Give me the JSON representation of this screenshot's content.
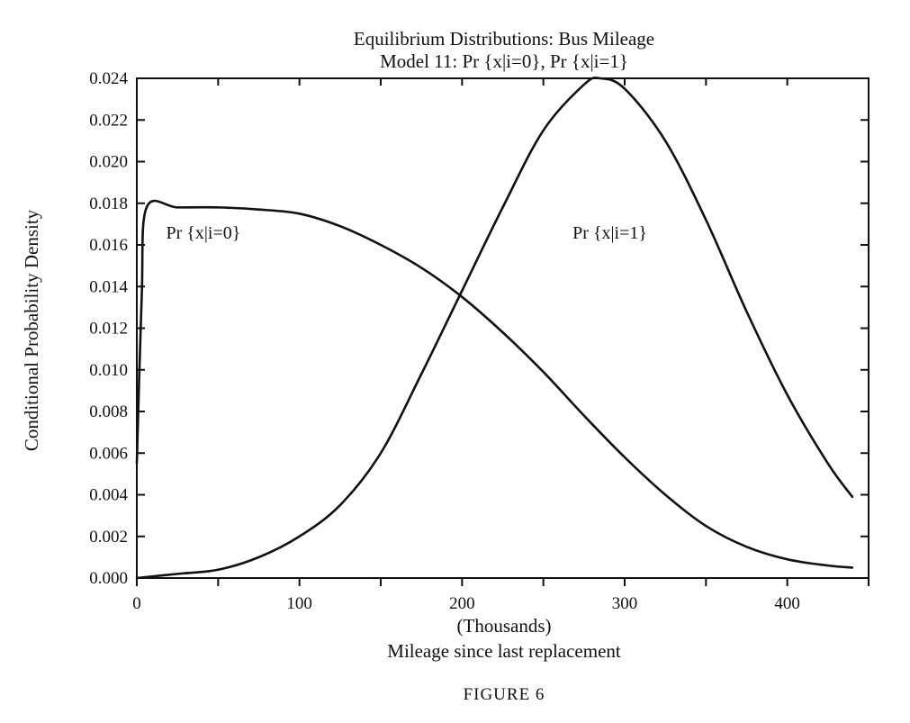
{
  "chart_data": {
    "type": "line",
    "title": "Equilibrium Distributions: Bus Mileage",
    "subtitle": "Model 11: Pr {x|i=0}, Pr {x|i=1}",
    "xlabel_units": "(Thousands)",
    "xlabel": "Mileage since last replacement",
    "ylabel": "Conditional Probability Density",
    "xlim": [
      0,
      450
    ],
    "ylim": [
      0,
      0.024
    ],
    "x_ticks": [
      0,
      100,
      200,
      300,
      400
    ],
    "x_tick_labels": [
      "0",
      "100",
      "200",
      "300",
      "400"
    ],
    "y_ticks": [
      0,
      0.002,
      0.004,
      0.006,
      0.008,
      0.01,
      0.012,
      0.014,
      0.016,
      0.018,
      0.02,
      0.022,
      0.024
    ],
    "y_tick_labels": [
      "0.000",
      "0.002",
      "0.004",
      "0.006",
      "0.008",
      "0.010",
      "0.012",
      "0.014",
      "0.016",
      "0.018",
      "0.020",
      "0.022",
      "0.024"
    ],
    "grid": false,
    "series": [
      {
        "name": "Pr {x|i=0}",
        "label_x": 18,
        "label_y": 0.0163,
        "x": [
          0,
          3,
          6,
          25,
          50,
          75,
          100,
          125,
          150,
          175,
          200,
          225,
          250,
          275,
          300,
          325,
          350,
          375,
          400,
          425,
          440
        ],
        "y": [
          0.0055,
          0.0135,
          0.0178,
          0.0178,
          0.0178,
          0.0177,
          0.0175,
          0.0169,
          0.016,
          0.0149,
          0.0135,
          0.0118,
          0.0099,
          0.0078,
          0.0058,
          0.004,
          0.0025,
          0.0015,
          0.0009,
          0.0006,
          0.0005
        ]
      },
      {
        "name": "Pr {x|i=1}",
        "label_x": 268,
        "label_y": 0.0163,
        "x": [
          0,
          25,
          50,
          75,
          100,
          125,
          150,
          175,
          200,
          225,
          250,
          275,
          285,
          300,
          325,
          350,
          375,
          400,
          425,
          440
        ],
        "y": [
          0.0,
          0.0002,
          0.0004,
          0.001,
          0.002,
          0.0035,
          0.006,
          0.0098,
          0.0138,
          0.0178,
          0.0215,
          0.0237,
          0.024,
          0.0235,
          0.021,
          0.0172,
          0.0128,
          0.0088,
          0.0055,
          0.0039
        ]
      }
    ],
    "figure_caption": "FIGURE 6"
  }
}
